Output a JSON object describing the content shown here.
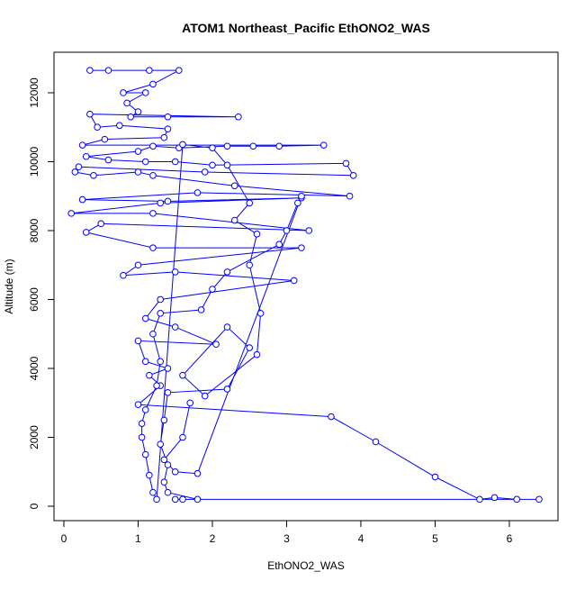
{
  "chart_data": {
    "type": "line",
    "title": "ATOM1 Northeast_Pacific EthONO2_WAS",
    "xlabel": "EthONO2_WAS",
    "ylabel": "Altitude (m)",
    "color": "#0000ff",
    "x": [
      0.35,
      0.6,
      1.15,
      1.55,
      1.2,
      0.8,
      1.1,
      0.85,
      1.0,
      0.9,
      1.4,
      2.35,
      0.35,
      0.45,
      0.75,
      1.4,
      1.35,
      0.55,
      0.25,
      3.5,
      2.9,
      2.55,
      2.2,
      1.55,
      1.2,
      1.0,
      0.3,
      0.6,
      1.1,
      1.5,
      2.0,
      3.8,
      3.9,
      1.9,
      0.2,
      0.15,
      0.4,
      1.0,
      1.2,
      2.3,
      3.85,
      1.8,
      0.25,
      1.4,
      3.2,
      1.3,
      0.1,
      1.2,
      3.3,
      0.5,
      0.3,
      1.2,
      3.2,
      1.0,
      0.8,
      1.5,
      3.1,
      1.3,
      1.1,
      1.5,
      2.05,
      1.0,
      1.1,
      1.4,
      1.15,
      1.3,
      1.0,
      3.6,
      4.2,
      5.0,
      5.6,
      5.8,
      6.1,
      6.4,
      1.5,
      1.6,
      1.8,
      1.4,
      1.35,
      1.4,
      1.3,
      1.35,
      1.4,
      2.2,
      2.5,
      2.2,
      1.6,
      1.9,
      2.6,
      2.65,
      2.5,
      2.6,
      2.3,
      2.5,
      2.2,
      2.0,
      1.6,
      1.25,
      1.2,
      1.15,
      1.1,
      1.05,
      1.05,
      1.1,
      1.25,
      1.3,
      1.2,
      1.3,
      1.85,
      2.0,
      2.2,
      2.9,
      3.0,
      3.15,
      3.2,
      1.8,
      1.5,
      1.35,
      1.6,
      1.7
    ],
    "y": [
      12650,
      12650,
      12650,
      12650,
      12250,
      12000,
      12000,
      11700,
      11450,
      11300,
      11300,
      11300,
      11380,
      11000,
      11050,
      10950,
      10700,
      10650,
      10480,
      10480,
      10450,
      10450,
      10450,
      10400,
      10450,
      10300,
      10150,
      10050,
      10000,
      10000,
      9900,
      9950,
      9600,
      9700,
      9850,
      9700,
      9600,
      9700,
      9600,
      9300,
      9000,
      9100,
      8900,
      8850,
      8950,
      8800,
      8500,
      8500,
      8000,
      8200,
      7950,
      7500,
      7500,
      7000,
      6700,
      6800,
      6550,
      6000,
      5450,
      5200,
      4700,
      4800,
      4200,
      4000,
      3800,
      3500,
      2950,
      2600,
      1870,
      850,
      200,
      250,
      200,
      200,
      200,
      200,
      200,
      400,
      700,
      1200,
      1800,
      2500,
      3300,
      3400,
      4600,
      5200,
      3800,
      3200,
      4400,
      5600,
      7000,
      7900,
      8300,
      8800,
      9900,
      10400,
      10500,
      200,
      400,
      900,
      1500,
      2000,
      2400,
      2800,
      3500,
      4200,
      5000,
      5600,
      5700,
      6300,
      6800,
      7600,
      8000,
      8800,
      9000,
      950,
      1000,
      1350,
      2000,
      3000
    ],
    "xlim": [
      -0.133,
      6.655
    ],
    "ylim": [
      -418,
      13176
    ],
    "xticks": [
      0,
      1,
      2,
      3,
      4,
      5,
      6
    ],
    "yticks": [
      0,
      2000,
      4000,
      6000,
      8000,
      10000,
      12000
    ]
  }
}
